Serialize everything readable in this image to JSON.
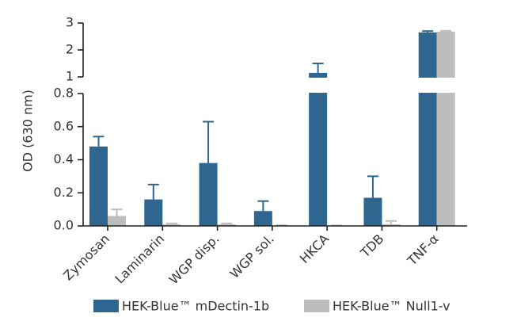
{
  "chart_data": {
    "type": "bar",
    "y_label": "OD (630 nm)",
    "categories": [
      "Zymosan",
      "Laminarin",
      "WGP disp.",
      "WGP sol.",
      "HKCA",
      "TDB",
      "TNF-α"
    ],
    "series": [
      {
        "name": "HEK-Blue™ mDectin-1b",
        "color": "#2e6690",
        "values": [
          0.48,
          0.16,
          0.38,
          0.09,
          1.15,
          0.17,
          2.65
        ],
        "errors": [
          0.06,
          0.09,
          0.25,
          0.06,
          0.35,
          0.13,
          0.05
        ]
      },
      {
        "name": "HEK-Blue™ Null1-v",
        "color": "#bdbdbd",
        "values": [
          0.06,
          0.01,
          0.01,
          0.002,
          0.002,
          0.01,
          2.68
        ],
        "errors": [
          0.04,
          0.005,
          0.005,
          0.002,
          0.001,
          0.02,
          0.03
        ]
      }
    ],
    "ylim": [
      0,
      3
    ],
    "ybreak": [
      0.8,
      1
    ],
    "yticks": [
      {
        "value": 0,
        "label": "0.0"
      },
      0.2,
      0.4,
      0.6,
      0.8,
      1,
      2,
      3
    ]
  }
}
